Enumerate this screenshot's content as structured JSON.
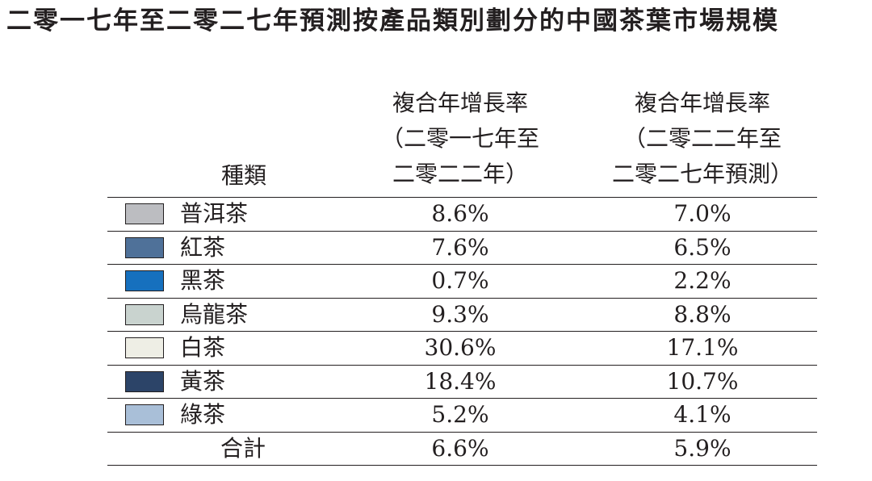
{
  "title": "二零一七年至二零二七年預測按產品類別劃分的中國茶葉市場規模",
  "header": {
    "category": "種類",
    "col1": [
      "複合年增長率",
      "（二零一七年至",
      "二零二二年）"
    ],
    "col2": [
      "複合年增長率",
      "（二零二二年至",
      "二零二七年預測）"
    ]
  },
  "chart_data": {
    "type": "table",
    "title": "二零一七年至二零二七年預測按產品類別劃分的中國茶葉市場規模",
    "columns": [
      "種類",
      "複合年增長率（二零一七年至二零二二年）",
      "複合年增長率（二零二二年至二零二七年預測）"
    ],
    "rows": [
      {
        "category": "普洱茶",
        "color": "#bcbdc1",
        "cagr_2017_2022": "8.6%",
        "cagr_2022_2027": "7.0%"
      },
      {
        "category": "紅茶",
        "color": "#4f7199",
        "cagr_2017_2022": "7.6%",
        "cagr_2022_2027": "6.5%"
      },
      {
        "category": "黑茶",
        "color": "#1670be",
        "cagr_2017_2022": "0.7%",
        "cagr_2022_2027": "2.2%"
      },
      {
        "category": "烏龍茶",
        "color": "#c9d3cf",
        "cagr_2017_2022": "9.3%",
        "cagr_2022_2027": "8.8%"
      },
      {
        "category": "白茶",
        "color": "#eeeee5",
        "cagr_2017_2022": "30.6%",
        "cagr_2022_2027": "17.1%"
      },
      {
        "category": "黃茶",
        "color": "#2c4468",
        "cagr_2017_2022": "18.4%",
        "cagr_2022_2027": "10.7%"
      },
      {
        "category": "綠茶",
        "color": "#a9bfd8",
        "cagr_2017_2022": "5.2%",
        "cagr_2022_2027": "4.1%"
      }
    ],
    "total": {
      "category": "合計",
      "cagr_2017_2022": "6.6%",
      "cagr_2022_2027": "5.9%"
    }
  }
}
